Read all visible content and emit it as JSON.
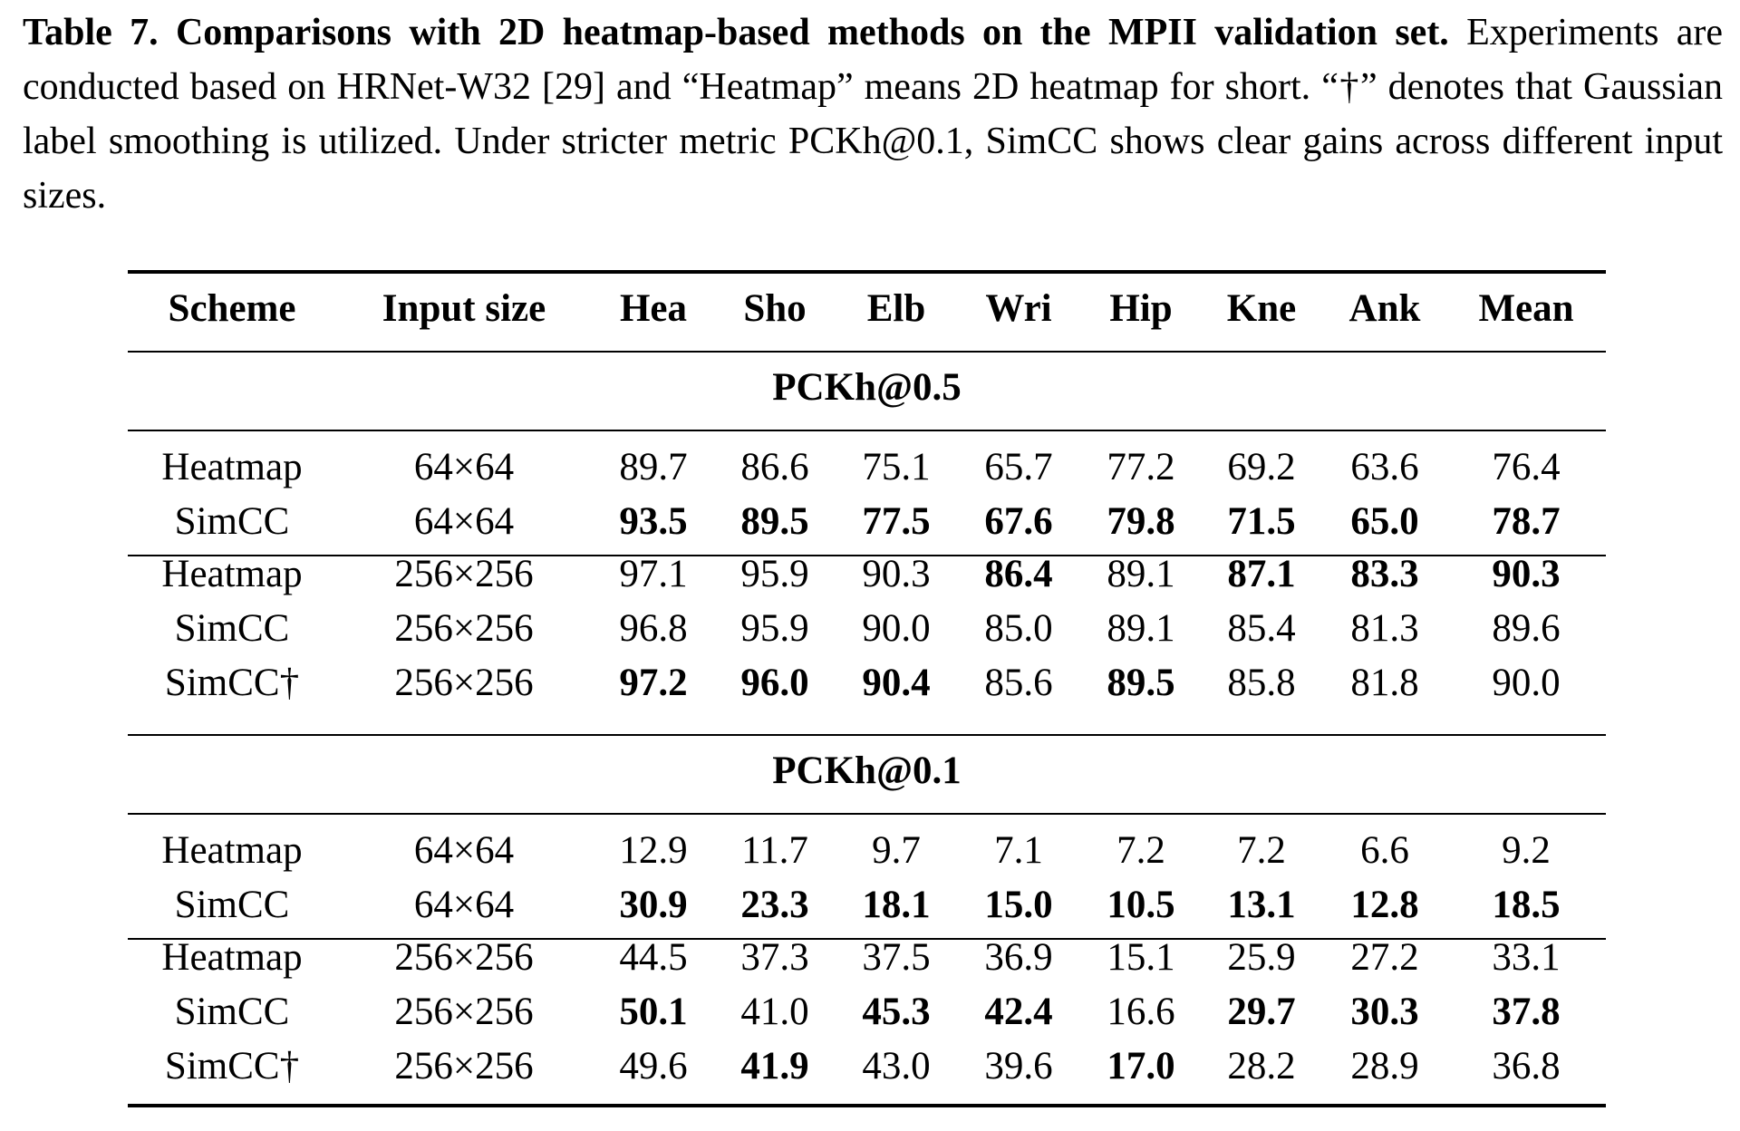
{
  "caption": {
    "title": "Table 7. Comparisons with 2D heatmap-based methods on the MPII validation set.",
    "text": "Experiments are conducted based on HRNet-W32 [29] and “Heatmap” means 2D heatmap for short. “†” denotes that Gaussian label smoothing is utilized. Under stricter metric PCKh@0.1, SimCC shows clear gains across different input sizes."
  },
  "table": {
    "header": [
      "Scheme",
      "Input size",
      "Hea",
      "Sho",
      "Elb",
      "Wri",
      "Hip",
      "Kne",
      "Ank",
      "Mean"
    ],
    "sections": [
      {
        "title": "PCKh@0.5",
        "groups": [
          [
            {
              "cells": [
                "Heatmap",
                "64×64",
                "89.7",
                "86.6",
                "75.1",
                "65.7",
                "77.2",
                "69.2",
                "63.6",
                "76.4"
              ],
              "bold": []
            },
            {
              "cells": [
                "SimCC",
                "64×64",
                "93.5",
                "89.5",
                "77.5",
                "67.6",
                "79.8",
                "71.5",
                "65.0",
                "78.7"
              ],
              "bold": [
                2,
                3,
                4,
                5,
                6,
                7,
                8,
                9
              ]
            }
          ],
          [
            {
              "cells": [
                "Heatmap",
                "256×256",
                "97.1",
                "95.9",
                "90.3",
                "86.4",
                "89.1",
                "87.1",
                "83.3",
                "90.3"
              ],
              "bold": [
                5,
                7,
                8,
                9
              ]
            },
            {
              "cells": [
                "SimCC",
                "256×256",
                "96.8",
                "95.9",
                "90.0",
                "85.0",
                "89.1",
                "85.4",
                "81.3",
                "89.6"
              ],
              "bold": []
            },
            {
              "cells": [
                "SimCC†",
                "256×256",
                "97.2",
                "96.0",
                "90.4",
                "85.6",
                "89.5",
                "85.8",
                "81.8",
                "90.0"
              ],
              "bold": [
                2,
                3,
                4,
                6
              ]
            }
          ]
        ]
      },
      {
        "title": "PCKh@0.1",
        "groups": [
          [
            {
              "cells": [
                "Heatmap",
                "64×64",
                "12.9",
                "11.7",
                "9.7",
                "7.1",
                "7.2",
                "7.2",
                "6.6",
                "9.2"
              ],
              "bold": []
            },
            {
              "cells": [
                "SimCC",
                "64×64",
                "30.9",
                "23.3",
                "18.1",
                "15.0",
                "10.5",
                "13.1",
                "12.8",
                "18.5"
              ],
              "bold": [
                2,
                3,
                4,
                5,
                6,
                7,
                8,
                9
              ]
            }
          ],
          [
            {
              "cells": [
                "Heatmap",
                "256×256",
                "44.5",
                "37.3",
                "37.5",
                "36.9",
                "15.1",
                "25.9",
                "27.2",
                "33.1"
              ],
              "bold": []
            },
            {
              "cells": [
                "SimCC",
                "256×256",
                "50.1",
                "41.0",
                "45.3",
                "42.4",
                "16.6",
                "29.7",
                "30.3",
                "37.8"
              ],
              "bold": [
                2,
                4,
                5,
                7,
                8,
                9
              ]
            },
            {
              "cells": [
                "SimCC†",
                "256×256",
                "49.6",
                "41.9",
                "43.0",
                "39.6",
                "17.0",
                "28.2",
                "28.9",
                "36.8"
              ],
              "bold": [
                3,
                6
              ]
            }
          ]
        ]
      }
    ]
  }
}
